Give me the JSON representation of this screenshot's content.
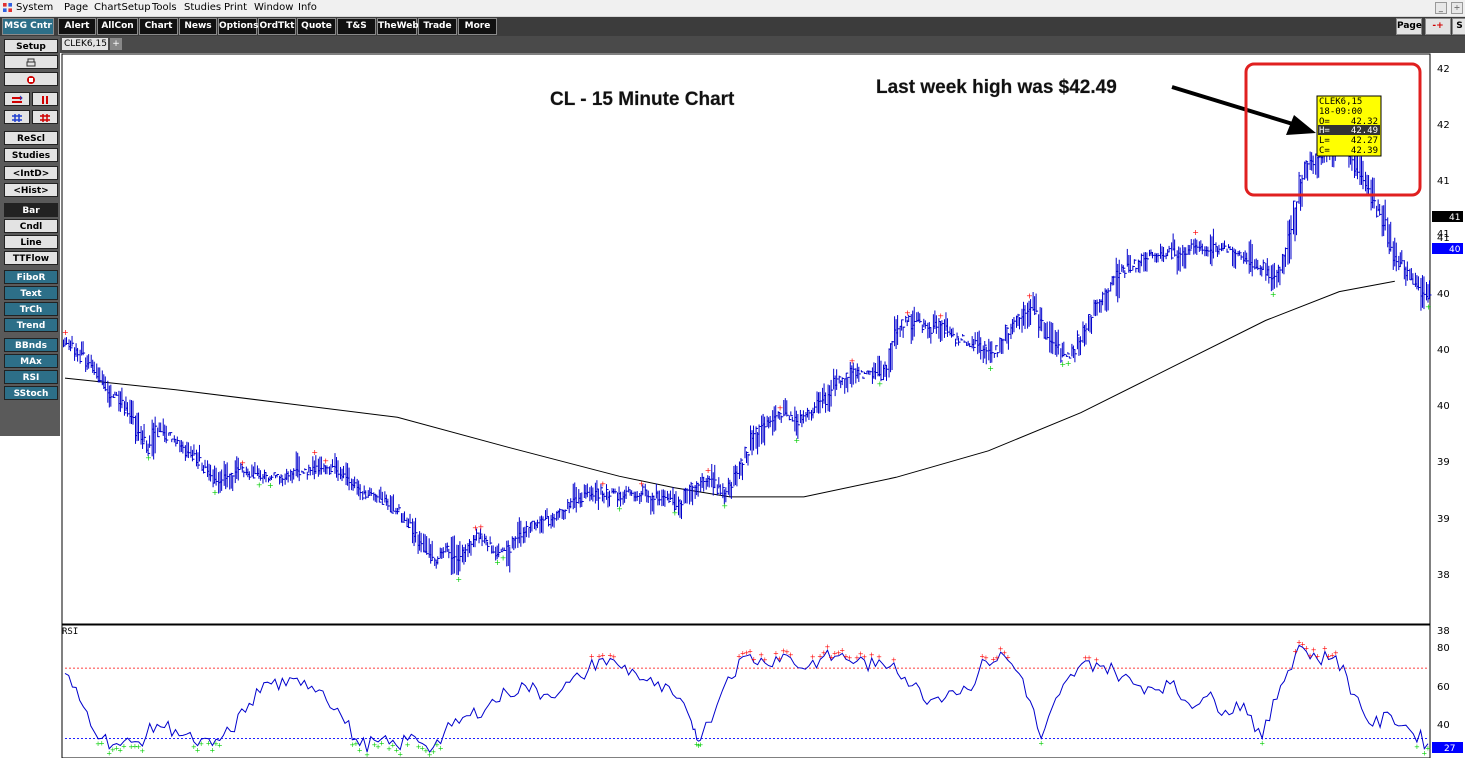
{
  "menubar": {
    "items": [
      "System",
      "Page",
      "ChartSetup",
      "Tools",
      "Studies",
      "Print",
      "Window",
      "Info"
    ]
  },
  "window_controls": [
    "_",
    "÷"
  ],
  "toolbar": {
    "msg_center": "MSG Cntr",
    "buttons": [
      "Alert",
      "AllCon",
      "Chart",
      "News",
      "Options",
      "OrdTkt",
      "Quote",
      "T&S",
      "TheWeb",
      "Trade",
      "More"
    ],
    "page_label": "Page",
    "page_arrow": "-+",
    "cut_label": "S"
  },
  "tabs": {
    "active": "CLEK6,15",
    "add": "+"
  },
  "sidebar": {
    "items": [
      "Setup",
      "",
      "",
      "",
      "",
      "ReScl",
      "Studies",
      "<IntD>",
      "<Hist>",
      "Bar",
      "Cndl",
      "Line",
      "TTFlow",
      "FiboR",
      "Text",
      "TrCh",
      "Trend",
      "BBnds",
      "MAx",
      "RSI",
      "SStoch"
    ],
    "icons": [
      "print-icon",
      "eraser-icon",
      "arrows-left-right-icon",
      "arrows-up-down-icon",
      "cross-hairs-icon",
      "cross-hairs-alt-icon"
    ]
  },
  "colors": {
    "bars": "#0000cc",
    "moving_average": "#000000",
    "high_marker": "#ff0000",
    "low_marker": "#00cc00",
    "callout_box": "#e02020",
    "tooltip_bg": "#ffff00",
    "rsi_line": "#0000cc",
    "rsi_overbought": "#ff0000",
    "rsi_oversold": "#0000ff",
    "last_price_tag": "#0000ff"
  },
  "annotations": {
    "title": "CL - 15 Minute Chart",
    "callout": "Last week high was $42.49"
  },
  "tooltip": {
    "symbol": "CLEK6,15",
    "time": "18-09:00",
    "open_label": "O=",
    "open": "42.32",
    "high_label": "H=",
    "high": "42.49",
    "low_label": "L=",
    "low": "42.27",
    "close_label": "C=",
    "close": "42.39"
  },
  "price_axis": {
    "labels": [
      "42",
      "42",
      "41",
      "41",
      "41",
      "40",
      "40",
      "40",
      "39",
      "39",
      "38",
      "38"
    ],
    "ma_tag": "41",
    "last_tag": "40"
  },
  "rsi": {
    "label": "RSI",
    "axis_labels": [
      "80",
      "60",
      "40"
    ],
    "last_tag": "27",
    "overbought": 70,
    "oversold": 30
  },
  "chart_data": {
    "type": "bar",
    "symbol": "CLEK6,15",
    "interval": "15 minute",
    "price_range": [
      37.72,
      42.55
    ],
    "bars": [
      [
        0,
        40.1
      ],
      [
        3,
        40.08
      ],
      [
        6,
        40.03
      ],
      [
        9,
        39.98
      ],
      [
        12,
        39.93
      ],
      [
        15,
        39.87
      ],
      [
        18,
        39.79
      ],
      [
        21,
        39.72
      ],
      [
        24,
        39.66
      ],
      [
        27,
        39.64
      ],
      [
        30,
        39.58
      ],
      [
        33,
        39.52
      ],
      [
        36,
        39.43
      ],
      [
        39,
        39.34
      ],
      [
        42,
        39.25
      ],
      [
        45,
        39.18
      ],
      [
        48,
        39.36
      ],
      [
        51,
        39.32
      ],
      [
        54,
        39.3
      ],
      [
        57,
        39.3
      ],
      [
        60,
        39.27
      ],
      [
        63,
        39.24
      ],
      [
        66,
        39.16
      ],
      [
        69,
        39.11
      ],
      [
        72,
        39.08
      ],
      [
        75,
        39.02
      ],
      [
        78,
        38.96
      ],
      [
        81,
        38.89
      ],
      [
        84,
        38.9
      ],
      [
        87,
        38.92
      ],
      [
        90,
        38.96
      ],
      [
        93,
        38.99
      ],
      [
        96,
        39.01
      ],
      [
        99,
        38.98
      ],
      [
        102,
        38.96
      ],
      [
        105,
        38.94
      ],
      [
        108,
        38.95
      ],
      [
        111,
        38.94
      ],
      [
        114,
        38.96
      ],
      [
        117,
        38.96
      ],
      [
        120,
        38.97
      ],
      [
        123,
        38.99
      ],
      [
        126,
        38.97
      ],
      [
        129,
        38.97
      ],
      [
        132,
        38.99
      ],
      [
        135,
        39.02
      ],
      [
        138,
        39.01
      ],
      [
        141,
        39.02
      ],
      [
        144,
        39.0
      ],
      [
        147,
        39.0
      ],
      [
        150,
        38.98
      ],
      [
        153,
        38.93
      ],
      [
        156,
        38.89
      ],
      [
        159,
        38.84
      ],
      [
        162,
        38.8
      ],
      [
        165,
        38.77
      ],
      [
        168,
        38.75
      ],
      [
        171,
        38.74
      ],
      [
        174,
        38.72
      ],
      [
        177,
        38.66
      ],
      [
        180,
        38.64
      ],
      [
        183,
        38.58
      ],
      [
        186,
        38.52
      ],
      [
        189,
        38.44
      ],
      [
        192,
        38.37
      ],
      [
        195,
        38.3
      ],
      [
        198,
        38.25
      ],
      [
        201,
        38.24
      ],
      [
        204,
        38.29
      ],
      [
        207,
        38.32
      ],
      [
        210,
        38.26
      ],
      [
        213,
        38.23
      ],
      [
        216,
        38.3
      ],
      [
        219,
        38.38
      ],
      [
        222,
        38.42
      ],
      [
        225,
        38.42
      ],
      [
        228,
        38.38
      ],
      [
        231,
        38.33
      ],
      [
        234,
        38.29
      ],
      [
        237,
        38.29
      ],
      [
        240,
        38.33
      ],
      [
        243,
        38.39
      ],
      [
        246,
        38.44
      ],
      [
        249,
        38.48
      ],
      [
        252,
        38.52
      ],
      [
        255,
        38.52
      ],
      [
        258,
        38.55
      ],
      [
        261,
        38.56
      ],
      [
        264,
        38.6
      ],
      [
        267,
        38.66
      ],
      [
        270,
        38.68
      ],
      [
        273,
        38.72
      ],
      [
        276,
        38.75
      ],
      [
        279,
        38.76
      ],
      [
        282,
        38.78
      ],
      [
        285,
        38.76
      ],
      [
        288,
        38.8
      ],
      [
        291,
        38.81
      ],
      [
        294,
        38.8
      ],
      [
        297,
        38.79
      ],
      [
        300,
        38.78
      ],
      [
        303,
        38.81
      ],
      [
        306,
        38.8
      ],
      [
        309,
        38.8
      ],
      [
        312,
        38.82
      ],
      [
        315,
        38.8
      ],
      [
        318,
        38.78
      ],
      [
        321,
        38.77
      ],
      [
        324,
        38.75
      ],
      [
        327,
        38.72
      ],
      [
        330,
        38.7
      ],
      [
        333,
        38.73
      ],
      [
        336,
        38.81
      ],
      [
        339,
        38.86
      ],
      [
        342,
        38.87
      ],
      [
        345,
        38.91
      ],
      [
        348,
        38.93
      ],
      [
        351,
        38.89
      ],
      [
        354,
        38.84
      ],
      [
        357,
        38.83
      ],
      [
        360,
        38.89
      ],
      [
        363,
        38.97
      ],
      [
        366,
        39.08
      ],
      [
        369,
        39.16
      ],
      [
        372,
        39.28
      ],
      [
        375,
        39.35
      ],
      [
        378,
        39.4
      ],
      [
        381,
        39.44
      ],
      [
        384,
        39.47
      ],
      [
        387,
        39.49
      ],
      [
        390,
        39.47
      ],
      [
        393,
        39.46
      ],
      [
        396,
        39.43
      ],
      [
        399,
        39.45
      ],
      [
        402,
        39.49
      ],
      [
        405,
        39.52
      ],
      [
        408,
        39.57
      ],
      [
        411,
        39.61
      ],
      [
        414,
        39.69
      ],
      [
        417,
        39.76
      ],
      [
        420,
        39.81
      ],
      [
        423,
        39.83
      ],
      [
        426,
        39.85
      ],
      [
        429,
        39.83
      ],
      [
        432,
        39.82
      ],
      [
        435,
        39.84
      ],
      [
        438,
        39.83
      ],
      [
        441,
        39.81
      ],
      [
        444,
        39.88
      ],
      [
        447,
        40.09
      ],
      [
        450,
        40.22
      ],
      [
        453,
        40.27
      ],
      [
        456,
        40.31
      ],
      [
        459,
        40.26
      ],
      [
        462,
        40.27
      ],
      [
        465,
        40.24
      ],
      [
        468,
        40.22
      ],
      [
        471,
        40.26
      ],
      [
        474,
        40.27
      ],
      [
        477,
        40.22
      ],
      [
        480,
        40.16
      ],
      [
        483,
        40.13
      ],
      [
        486,
        40.13
      ],
      [
        489,
        40.11
      ],
      [
        492,
        40.09
      ],
      [
        495,
        40.06
      ],
      [
        498,
        40.05
      ],
      [
        501,
        40.02
      ],
      [
        504,
        40.05
      ],
      [
        507,
        40.13
      ],
      [
        510,
        40.22
      ],
      [
        513,
        40.26
      ],
      [
        516,
        40.31
      ],
      [
        519,
        40.37
      ],
      [
        522,
        40.4
      ],
      [
        525,
        40.37
      ],
      [
        528,
        40.28
      ],
      [
        531,
        40.17
      ],
      [
        534,
        40.1
      ],
      [
        537,
        40.05
      ],
      [
        540,
        39.98
      ],
      [
        543,
        39.98
      ],
      [
        546,
        40.04
      ],
      [
        549,
        40.14
      ],
      [
        552,
        40.25
      ],
      [
        555,
        40.35
      ],
      [
        558,
        40.44
      ],
      [
        561,
        40.5
      ],
      [
        564,
        40.58
      ],
      [
        567,
        40.64
      ],
      [
        570,
        40.71
      ],
      [
        573,
        40.74
      ],
      [
        576,
        40.76
      ],
      [
        579,
        40.79
      ],
      [
        582,
        40.83
      ],
      [
        585,
        40.85
      ],
      [
        588,
        40.87
      ],
      [
        591,
        40.85
      ],
      [
        594,
        40.87
      ],
      [
        597,
        40.9
      ],
      [
        600,
        40.88
      ],
      [
        603,
        40.89
      ],
      [
        606,
        40.91
      ],
      [
        609,
        40.93
      ],
      [
        612,
        40.96
      ],
      [
        615,
        40.93
      ],
      [
        618,
        40.91
      ],
      [
        621,
        40.92
      ],
      [
        624,
        40.93
      ],
      [
        627,
        40.92
      ],
      [
        630,
        40.9
      ],
      [
        633,
        40.89
      ],
      [
        636,
        40.88
      ],
      [
        639,
        40.83
      ],
      [
        642,
        40.78
      ],
      [
        645,
        40.76
      ],
      [
        648,
        40.77
      ],
      [
        651,
        40.7
      ],
      [
        654,
        40.68
      ],
      [
        657,
        40.75
      ],
      [
        660,
        40.89
      ],
      [
        663,
        41.08
      ],
      [
        666,
        41.31
      ],
      [
        669,
        41.52
      ],
      [
        672,
        41.65
      ],
      [
        675,
        41.69
      ],
      [
        678,
        41.74
      ],
      [
        681,
        41.73
      ],
      [
        684,
        41.79
      ],
      [
        687,
        41.81
      ],
      [
        690,
        41.81
      ],
      [
        693,
        41.78
      ],
      [
        696,
        41.72
      ],
      [
        699,
        41.62
      ],
      [
        702,
        41.52
      ],
      [
        705,
        41.44
      ],
      [
        708,
        41.32
      ],
      [
        711,
        41.23
      ],
      [
        714,
        41.15
      ],
      [
        717,
        40.95
      ],
      [
        720,
        40.83
      ],
      [
        723,
        40.78
      ],
      [
        726,
        40.71
      ],
      [
        729,
        40.65
      ],
      [
        732,
        40.62
      ],
      [
        735,
        40.55
      ],
      [
        738,
        40.5
      ]
    ],
    "moving_average": [
      [
        0,
        39.8
      ],
      [
        60,
        39.7
      ],
      [
        120,
        39.58
      ],
      [
        180,
        39.46
      ],
      [
        240,
        39.2
      ],
      [
        300,
        38.95
      ],
      [
        330,
        38.85
      ],
      [
        360,
        38.77
      ],
      [
        400,
        38.77
      ],
      [
        450,
        38.94
      ],
      [
        500,
        39.17
      ],
      [
        550,
        39.5
      ],
      [
        600,
        39.9
      ],
      [
        650,
        40.3
      ],
      [
        690,
        40.55
      ],
      [
        720,
        40.64
      ]
    ],
    "rsi": [
      [
        0,
        67
      ],
      [
        10,
        48
      ],
      [
        20,
        30
      ],
      [
        30,
        26
      ],
      [
        40,
        28
      ],
      [
        50,
        38
      ],
      [
        60,
        35
      ],
      [
        70,
        28
      ],
      [
        80,
        26
      ],
      [
        90,
        34
      ],
      [
        100,
        50
      ],
      [
        110,
        62
      ],
      [
        120,
        60
      ],
      [
        130,
        63
      ],
      [
        140,
        57
      ],
      [
        150,
        43
      ],
      [
        160,
        26
      ],
      [
        170,
        28
      ],
      [
        180,
        26
      ],
      [
        190,
        31
      ],
      [
        200,
        25
      ],
      [
        210,
        37
      ],
      [
        220,
        43
      ],
      [
        230,
        49
      ],
      [
        240,
        56
      ],
      [
        250,
        60
      ],
      [
        260,
        55
      ],
      [
        270,
        58
      ],
      [
        280,
        65
      ],
      [
        290,
        75
      ],
      [
        300,
        72
      ],
      [
        310,
        67
      ],
      [
        320,
        60
      ],
      [
        330,
        55
      ],
      [
        340,
        40
      ],
      [
        345,
        29
      ],
      [
        360,
        65
      ],
      [
        370,
        77
      ],
      [
        380,
        73
      ],
      [
        390,
        78
      ],
      [
        400,
        70
      ],
      [
        410,
        75
      ],
      [
        420,
        77
      ],
      [
        430,
        74
      ],
      [
        440,
        71
      ],
      [
        450,
        73
      ],
      [
        460,
        60
      ],
      [
        470,
        52
      ],
      [
        480,
        57
      ],
      [
        490,
        58
      ],
      [
        500,
        74
      ],
      [
        510,
        77
      ],
      [
        520,
        64
      ],
      [
        530,
        30
      ],
      [
        540,
        55
      ],
      [
        550,
        70
      ],
      [
        560,
        73
      ],
      [
        570,
        68
      ],
      [
        580,
        61
      ],
      [
        590,
        59
      ],
      [
        600,
        61
      ],
      [
        610,
        50
      ],
      [
        620,
        54
      ],
      [
        630,
        46
      ],
      [
        640,
        50
      ],
      [
        650,
        30
      ],
      [
        660,
        60
      ],
      [
        670,
        83
      ],
      [
        680,
        75
      ],
      [
        690,
        77
      ],
      [
        700,
        55
      ],
      [
        710,
        37
      ],
      [
        720,
        43
      ],
      [
        730,
        35
      ],
      [
        740,
        27
      ]
    ]
  }
}
